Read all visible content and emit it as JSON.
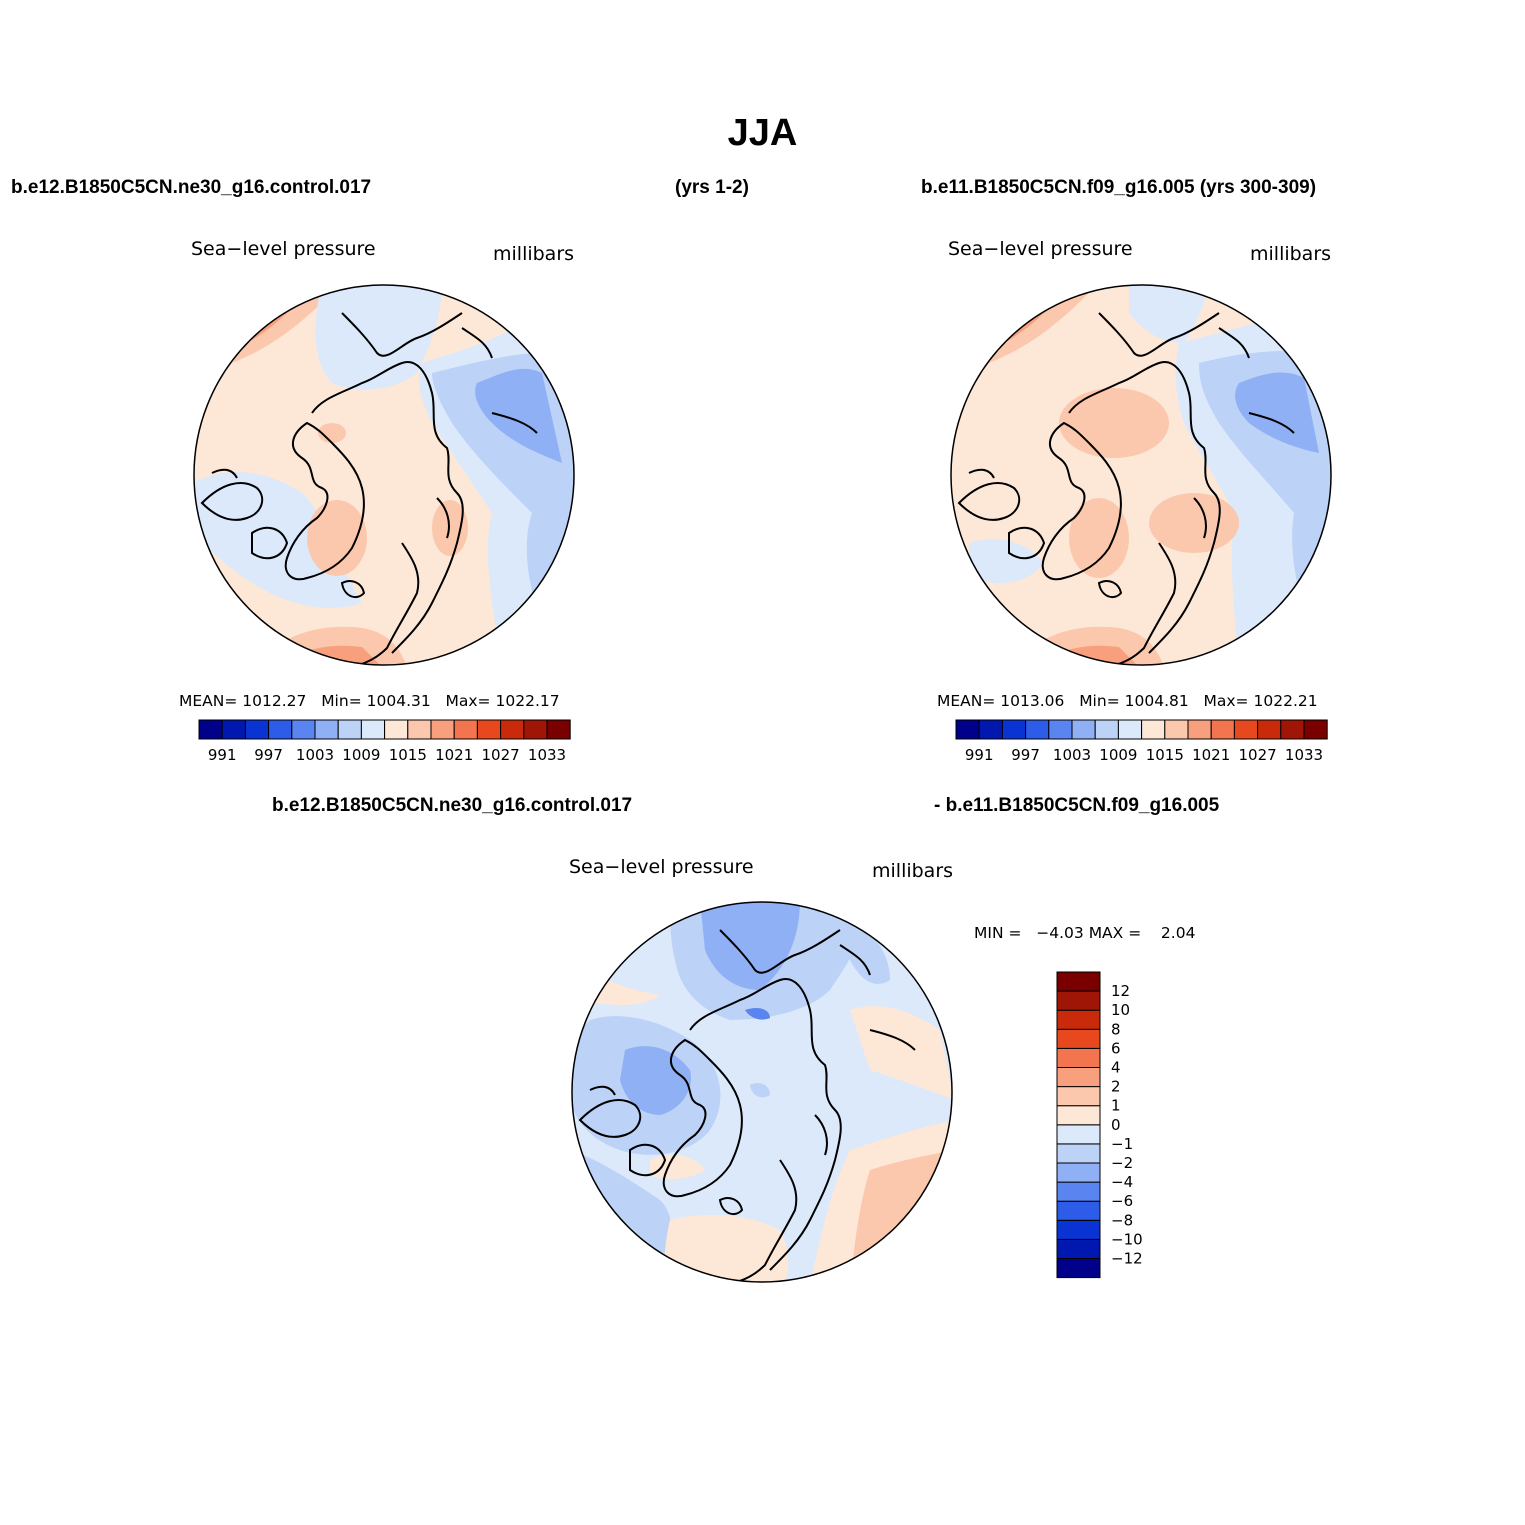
{
  "title": "JJA",
  "headers": {
    "left_case": "b.e12.B1850C5CN.ne30_g16.control.017",
    "left_years": "(yrs 1-2)",
    "right_case": "b.e11.B1850C5CN.f09_g16.005 (yrs 300-309)",
    "diff_case_a": "b.e12.B1850C5CN.ne30_g16.control.017",
    "diff_case_b": "- b.e11.B1850C5CN.f09_g16.005"
  },
  "panels": [
    {
      "variable": "Sea−level pressure",
      "units": "millibars",
      "mean_label": "MEAN=",
      "mean": "1012.27",
      "min_label": "Min=",
      "min": "1004.31",
      "max_label": "Max=",
      "max": "1022.17"
    },
    {
      "variable": "Sea−level pressure",
      "units": "millibars",
      "mean_label": "MEAN=",
      "mean": "1013.06",
      "min_label": "Min=",
      "min": "1004.81",
      "max_label": "Max=",
      "max": "1022.21"
    },
    {
      "variable": "Sea−level pressure",
      "units": "millibars",
      "min_label": "MIN =",
      "min": "−4.03",
      "max_label": "MAX =",
      "max": "2.04"
    }
  ],
  "colorbars": {
    "abs_colors": [
      "#00008b",
      "#0018b0",
      "#0a33d4",
      "#2d5ce8",
      "#5a84f0",
      "#8fb0f4",
      "#bcd2f7",
      "#dbe9fb",
      "#fde8d8",
      "#fbc8ad",
      "#f8a07e",
      "#f3754f",
      "#e8481e",
      "#c82a0a",
      "#a01606",
      "#7a0000"
    ],
    "abs_ticks": [
      "991",
      "997",
      "1003",
      "1009",
      "1015",
      "1021",
      "1027",
      "1033"
    ],
    "diff_colors": [
      "#00008b",
      "#0018b0",
      "#0a33d4",
      "#2d5ce8",
      "#5a84f0",
      "#8fb0f4",
      "#bcd2f7",
      "#dbe9fb",
      "#fde8d8",
      "#fbc8ad",
      "#f8a07e",
      "#f3754f",
      "#e8481e",
      "#c82a0a",
      "#a01606",
      "#7a0000"
    ],
    "diff_ticks": [
      "−12",
      "−10",
      "−8",
      "−6",
      "−4",
      "−2",
      "−1",
      "0",
      "1",
      "2",
      "4",
      "6",
      "8",
      "10",
      "12"
    ]
  }
}
